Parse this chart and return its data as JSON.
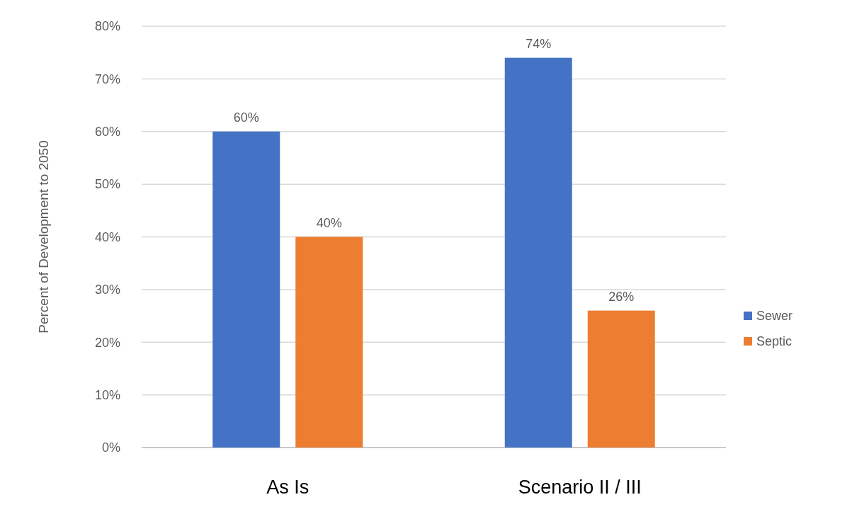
{
  "chart_data": {
    "type": "bar",
    "ylabel": "Percent of Development to 2050",
    "categories": [
      "As Is",
      "Scenario II / III"
    ],
    "series": [
      {
        "name": "Sewer",
        "color": "#4472c4",
        "values": [
          60,
          74
        ],
        "value_labels": [
          "60%",
          "74%"
        ]
      },
      {
        "name": "Septic",
        "color": "#ed7d31",
        "values": [
          40,
          26
        ],
        "value_labels": [
          "40%",
          "26%"
        ]
      }
    ],
    "ylim": [
      0,
      80
    ],
    "yticks": [
      {
        "value": 0,
        "label": "0%"
      },
      {
        "value": 10,
        "label": "10%"
      },
      {
        "value": 20,
        "label": "20%"
      },
      {
        "value": 30,
        "label": "30%"
      },
      {
        "value": 40,
        "label": "40%"
      },
      {
        "value": 50,
        "label": "50%"
      },
      {
        "value": 60,
        "label": "60%"
      },
      {
        "value": 70,
        "label": "70%"
      },
      {
        "value": 80,
        "label": "80%"
      }
    ],
    "grid": "y",
    "legend": "right"
  }
}
